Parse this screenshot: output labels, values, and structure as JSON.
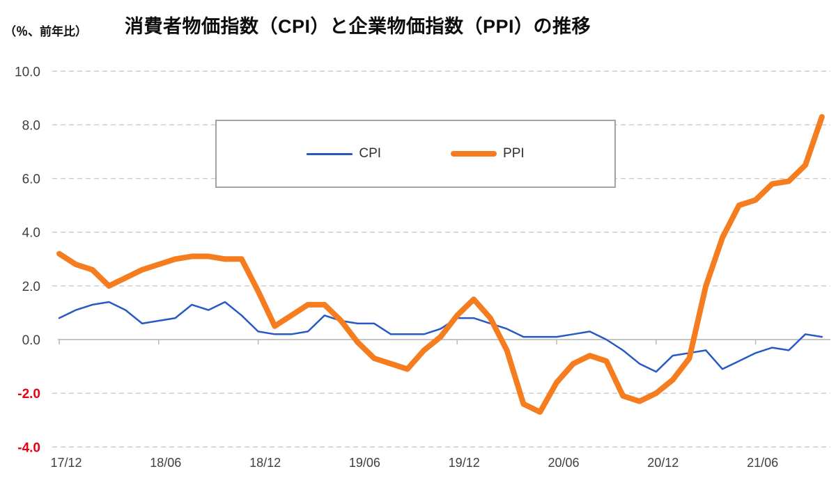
{
  "chart_data": {
    "type": "line",
    "title": "消費者物価指数（CPI）と企業物価指数（PPI）の推移",
    "ylabel": "（％、前年比）",
    "xlabel": "",
    "ylim": [
      -4.0,
      10.0
    ],
    "ytick_interval": 2.0,
    "y_ticks": [
      {
        "label": "10.0",
        "value": 10
      },
      {
        "label": "8.0",
        "value": 8
      },
      {
        "label": "6.0",
        "value": 6
      },
      {
        "label": "4.0",
        "value": 4
      },
      {
        "label": "2.0",
        "value": 2
      },
      {
        "label": "0.0",
        "value": 0
      },
      {
        "label": "-2.0",
        "value": -2
      },
      {
        "label": "-4.0",
        "value": -4
      }
    ],
    "grid": "horizontal-dashed",
    "legend_position": "top-center-boxed",
    "x": [
      "17/12",
      "18/01",
      "18/02",
      "18/03",
      "18/04",
      "18/05",
      "18/06",
      "18/07",
      "18/08",
      "18/09",
      "18/10",
      "18/11",
      "18/12",
      "19/01",
      "19/02",
      "19/03",
      "19/04",
      "19/05",
      "19/06",
      "19/07",
      "19/08",
      "19/09",
      "19/10",
      "19/11",
      "19/12",
      "20/01",
      "20/02",
      "20/03",
      "20/04",
      "20/05",
      "20/06",
      "20/07",
      "20/08",
      "20/09",
      "20/10",
      "20/11",
      "20/12",
      "21/01",
      "21/02",
      "21/03",
      "21/04",
      "21/05",
      "21/06",
      "21/07",
      "21/08",
      "21/09",
      "21/10"
    ],
    "x_tick_indices": [
      0,
      6,
      12,
      18,
      24,
      30,
      36,
      42
    ],
    "x_tick_labels": [
      "17/12",
      "18/06",
      "18/12",
      "19/06",
      "19/12",
      "20/06",
      "20/12",
      "21/06"
    ],
    "series": [
      {
        "name": "CPI",
        "color": "#2759c5",
        "stroke_width": 2.5,
        "values": [
          0.8,
          1.1,
          1.3,
          1.4,
          1.1,
          0.6,
          0.7,
          0.8,
          1.3,
          1.1,
          1.4,
          0.9,
          0.3,
          0.2,
          0.2,
          0.3,
          0.9,
          0.7,
          0.6,
          0.6,
          0.2,
          0.2,
          0.2,
          0.4,
          0.8,
          0.8,
          0.6,
          0.4,
          0.1,
          0.1,
          0.1,
          0.2,
          0.3,
          0.0,
          -0.4,
          -0.9,
          -1.2,
          -0.6,
          -0.5,
          -0.4,
          -1.1,
          -0.8,
          -0.5,
          -0.3,
          -0.4,
          0.2,
          0.1
        ]
      },
      {
        "name": "PPI",
        "color": "#f57d1f",
        "stroke_width": 8,
        "values": [
          3.2,
          2.8,
          2.6,
          2.0,
          2.3,
          2.6,
          2.8,
          3.0,
          3.1,
          3.1,
          3.0,
          3.0,
          1.8,
          0.5,
          0.9,
          1.3,
          1.3,
          0.7,
          -0.1,
          -0.7,
          -0.9,
          -1.1,
          -0.4,
          0.1,
          0.9,
          1.5,
          0.8,
          -0.4,
          -2.4,
          -2.7,
          -1.6,
          -0.9,
          -0.6,
          -0.8,
          -2.1,
          -2.3,
          -2.0,
          -1.5,
          -0.7,
          2.0,
          3.8,
          5.0,
          5.2,
          5.8,
          5.9,
          6.5,
          8.3
        ]
      }
    ],
    "style": {
      "grid_color": "#c9c9c9",
      "zero_axis_color": "#c4c4c4",
      "tick_color": "#b9b9b9",
      "label_color": "#3f3f3f",
      "negative_label_color": "#e60012",
      "background": "#ffffff"
    }
  }
}
